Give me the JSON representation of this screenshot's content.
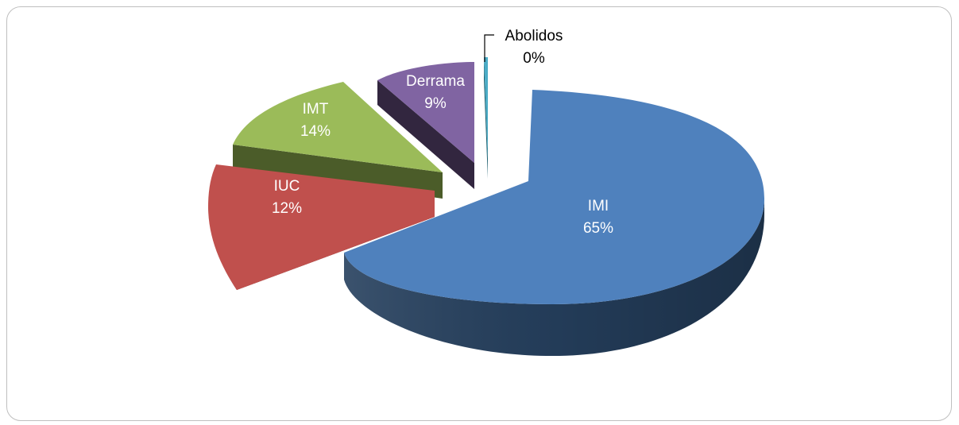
{
  "chart_data": {
    "type": "pie",
    "style": "3d-exploded",
    "title": "",
    "slices": [
      {
        "name": "IMI",
        "percent_label": "65%",
        "value": 65,
        "color": "#4f81bd",
        "side_color": "#253f5d",
        "label_color": "#ffffff"
      },
      {
        "name": "IUC",
        "percent_label": "12%",
        "value": 12,
        "color": "#c0504d",
        "side_color": "#602725",
        "label_color": "#ffffff"
      },
      {
        "name": "IMT",
        "percent_label": "14%",
        "value": 14,
        "color": "#9bbb59",
        "side_color": "#4b5c29",
        "label_color": "#ffffff"
      },
      {
        "name": "Derrama",
        "percent_label": "9%",
        "value": 9,
        "color": "#8064a2",
        "side_color": "#32263f",
        "label_color": "#ffffff"
      },
      {
        "name": "Abolidos",
        "percent_label": "0%",
        "value": 0,
        "color": "#4bacc6",
        "side_color": "#20606f",
        "label_color": "#000000"
      }
    ]
  }
}
